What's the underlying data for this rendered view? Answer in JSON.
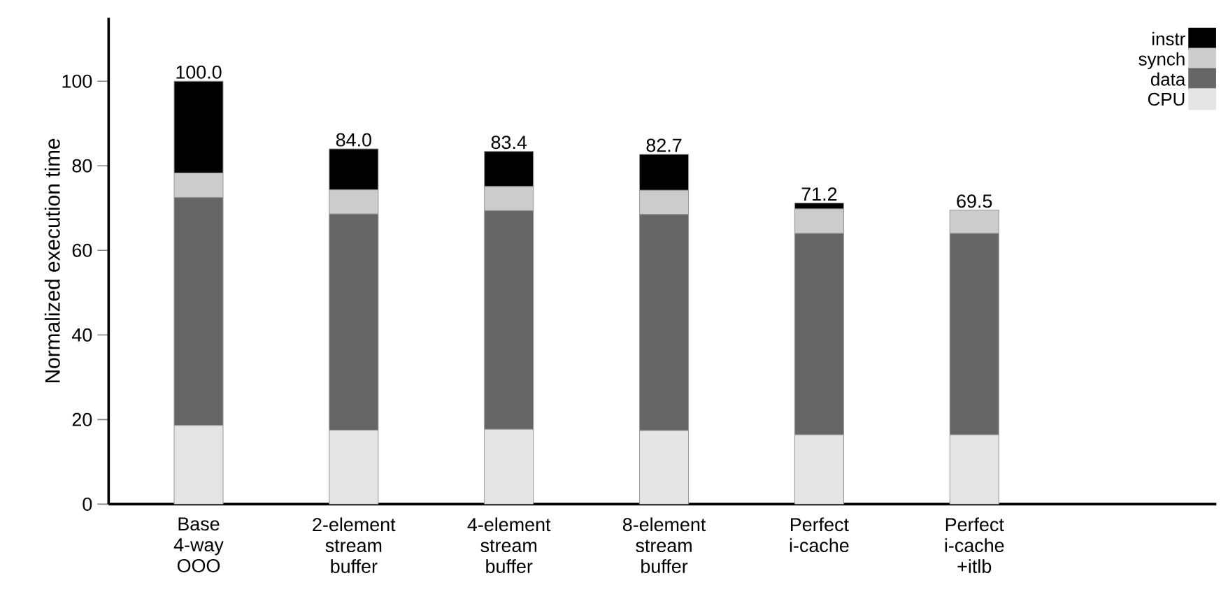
{
  "chart_data": {
    "type": "bar",
    "stacked": true,
    "ylabel": "Normalized execution time",
    "categories": [
      "Base 4-way OOO",
      "2-element stream buffer",
      "4-element stream buffer",
      "8-element stream buffer",
      "Perfect i-cache",
      "Perfect i-cache +itlb"
    ],
    "series": [
      {
        "name": "CPU",
        "color": "#e5e5e5",
        "values": [
          18.6,
          17.5,
          17.7,
          17.4,
          16.4,
          16.4
        ]
      },
      {
        "name": "data",
        "color": "#666666",
        "values": [
          53.9,
          51.1,
          51.7,
          51.1,
          47.6,
          47.6
        ]
      },
      {
        "name": "synch",
        "color": "#cccccc",
        "values": [
          5.8,
          5.7,
          5.7,
          5.7,
          5.8,
          5.5
        ]
      },
      {
        "name": "instr",
        "color": "#000000",
        "values": [
          21.7,
          9.7,
          8.3,
          8.5,
          1.4,
          0
        ]
      }
    ],
    "totals": [
      "100.0",
      "84.0",
      "83.4",
      "82.7",
      "71.2",
      "69.5"
    ],
    "ylim": [
      0,
      115
    ],
    "yticks": [
      0,
      20,
      40,
      60,
      80,
      100
    ],
    "grid": false,
    "legend": "top right"
  }
}
